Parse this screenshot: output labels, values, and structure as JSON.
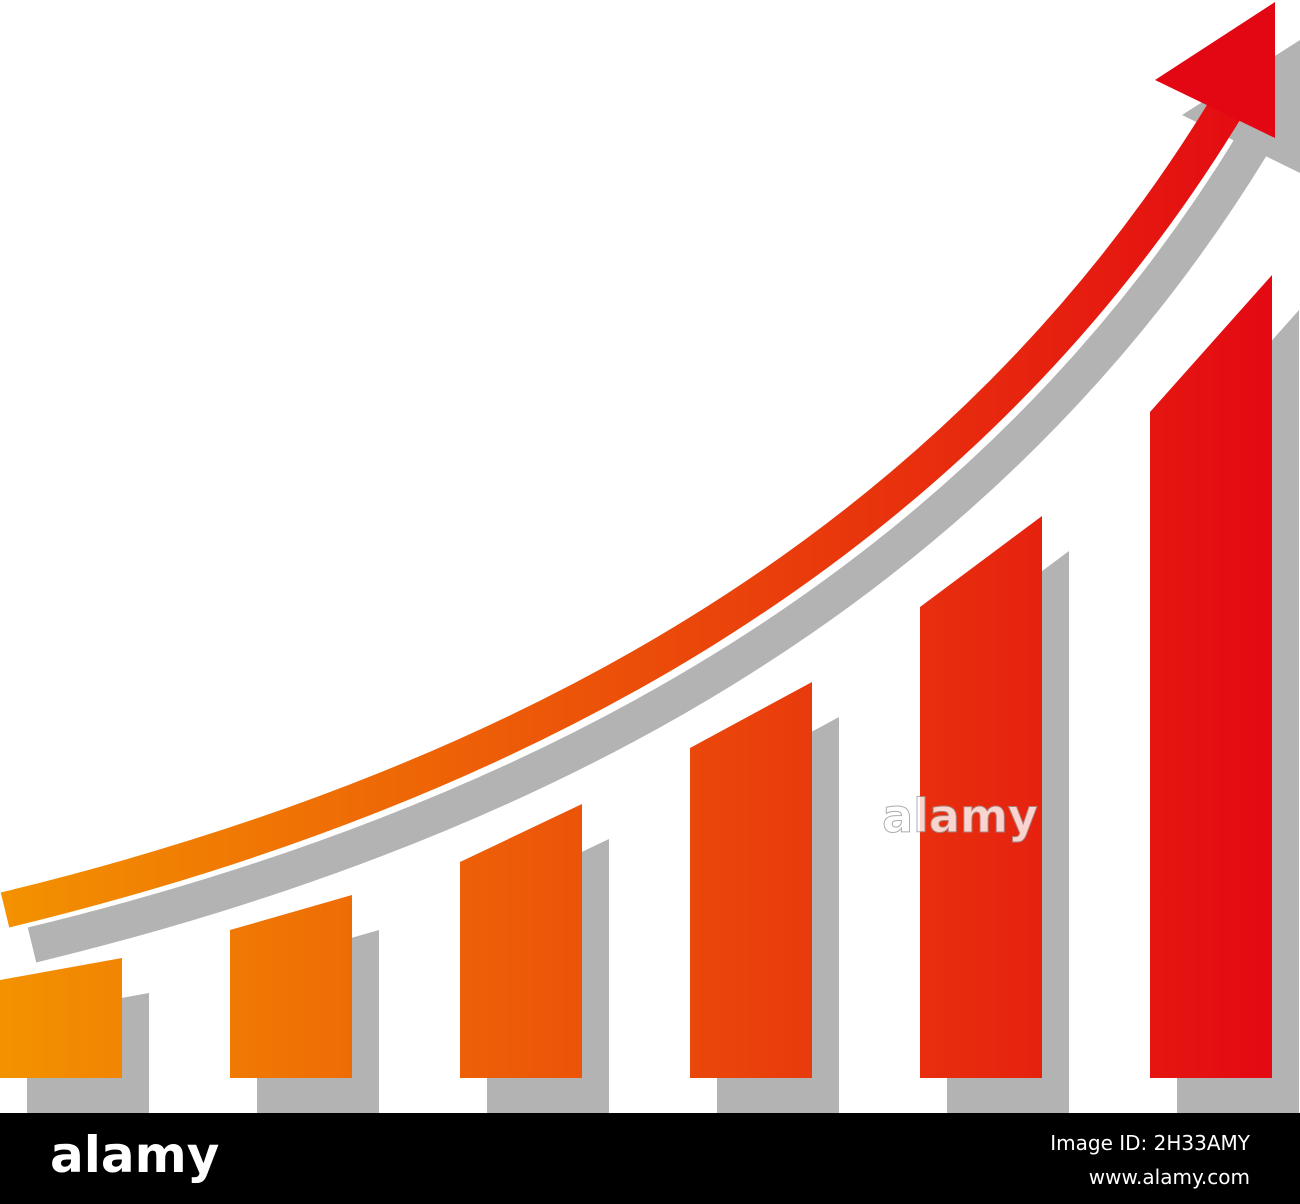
{
  "watermark": "alamy",
  "footer": {
    "logo": "alamy",
    "image_id": "Image ID: 2H33AMY",
    "url": "www.alamy.com"
  }
}
